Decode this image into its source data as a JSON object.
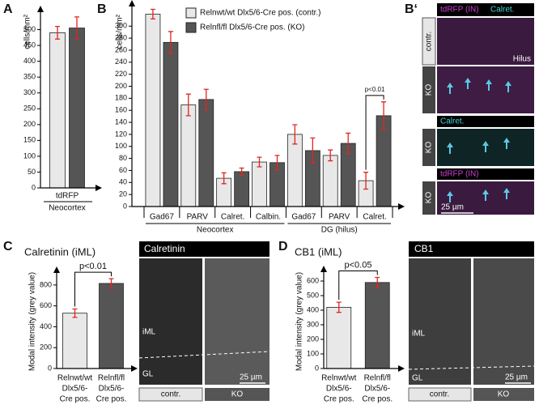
{
  "panel_letters": [
    "A",
    "B",
    "B‘",
    "C",
    "D"
  ],
  "chart_data": [
    {
      "type": "bar",
      "ylabel": "cells/mm²",
      "ylim": [
        0,
        550
      ],
      "yticks": [
        0,
        50,
        100,
        150,
        200,
        250,
        300,
        350,
        400,
        450,
        500
      ],
      "categories": [
        "tdRFP"
      ],
      "xlabel": "Neocortex",
      "error_color": "#e0261e",
      "series": [
        {
          "color": "#e8e8e8",
          "values": [
            490
          ],
          "errors": [
            20
          ]
        },
        {
          "color": "#555555",
          "values": [
            505
          ],
          "errors": [
            35
          ]
        }
      ]
    },
    {
      "type": "bar",
      "ylabel": "cells/mm²",
      "ylim": [
        0,
        330
      ],
      "yticks": [
        0,
        20,
        40,
        60,
        80,
        100,
        120,
        140,
        160,
        180,
        200,
        220,
        240,
        260,
        280,
        300
      ],
      "categories": [
        "Gad67",
        "PARV",
        "Calret.",
        "Calbin.",
        "Gad67",
        "PARV",
        "Calret."
      ],
      "x_group_labels": [
        "Neocortex",
        "DG (hilus)"
      ],
      "error_color": "#e0261e",
      "annotation": "p<0.01",
      "series": [
        {
          "name": "Relnwt/wt Dlx5/6-Cre pos. (contr.)",
          "color": "#e8e8e8",
          "values": [
            320,
            169,
            47,
            74,
            120,
            85,
            43
          ],
          "errors": [
            8,
            18,
            9,
            8,
            16,
            9,
            14
          ]
        },
        {
          "name": "Relnfl/fl Dlx5/6-Cre pos. (KO)",
          "color": "#555555",
          "values": [
            273,
            178,
            58,
            73,
            93,
            105,
            151
          ],
          "errors": [
            18,
            17,
            6,
            12,
            21,
            17,
            23
          ]
        }
      ]
    },
    {
      "type": "bar",
      "title": "Calretinin (iML)",
      "ylabel": "Modal intensity (grey value)",
      "ylim": [
        0,
        900
      ],
      "yticks": [
        0,
        200,
        400,
        600,
        800
      ],
      "categories": [
        [
          "Relnwt/wt",
          "Dlx5/6-",
          "Cre pos."
        ],
        [
          "Relnfl/fl",
          "Dlx5/6-",
          "Cre pos."
        ]
      ],
      "error_color": "#e0261e",
      "annotation": "p<0.01",
      "series": [
        {
          "colors": [
            "#e8e8e8",
            "#555555"
          ],
          "values": [
            530,
            815
          ],
          "errors": [
            40,
            45
          ]
        }
      ]
    },
    {
      "type": "bar",
      "title": "CB1 (iML)",
      "ylabel": "Modal intensity (grey value)",
      "ylim": [
        0,
        650
      ],
      "yticks": [
        0,
        100,
        200,
        300,
        400,
        500,
        600
      ],
      "categories": [
        [
          "Relnwt/wt",
          "Dlx5/6-",
          "Cre pos."
        ],
        [
          "Relnfl/fl",
          "Dlx5/6-",
          "Cre pos."
        ]
      ],
      "error_color": "#e0261e",
      "annotation": "p<0.05",
      "series": [
        {
          "colors": [
            "#e8e8e8",
            "#555555"
          ],
          "values": [
            420,
            590
          ],
          "errors": [
            35,
            35
          ]
        }
      ]
    }
  ],
  "micrographs": {
    "b_prime": [
      "tdRFP (IN)",
      "Calret.",
      "contr.",
      "Hilus",
      "KO",
      "Calret.",
      "KO",
      "tdRFP (IN)",
      "KO",
      "25 µm"
    ],
    "c": [
      "Calretinin",
      "iML",
      "GL",
      "25 µm",
      "contr.",
      "KO"
    ],
    "d": [
      "CB1",
      "iML",
      "GL",
      "25 µm",
      "contr.",
      "KO"
    ]
  }
}
